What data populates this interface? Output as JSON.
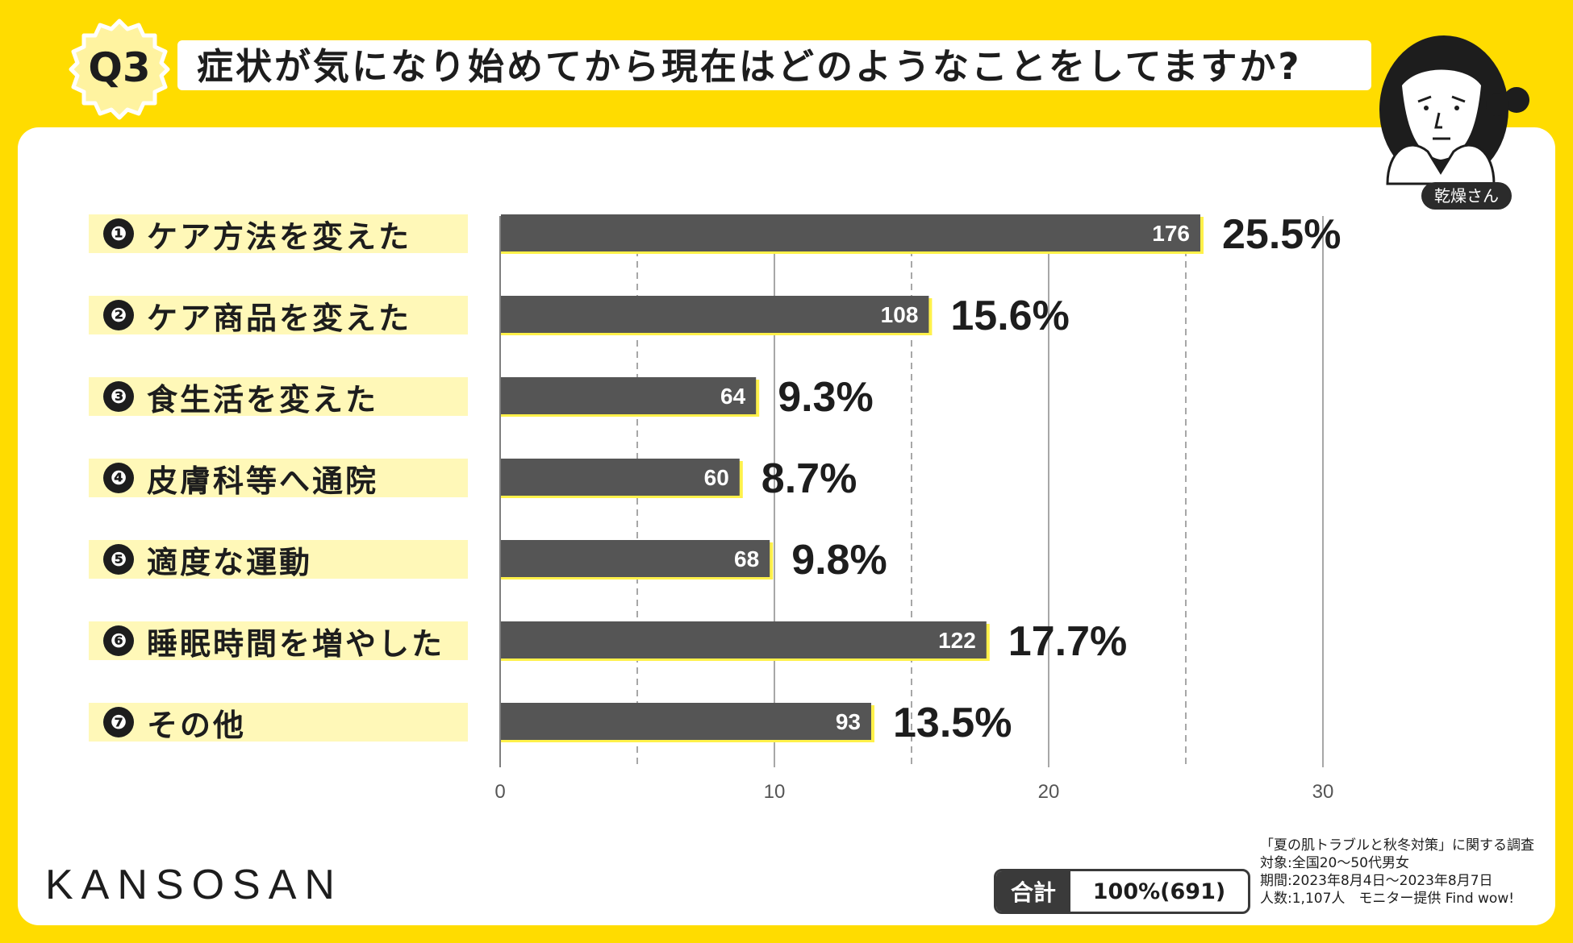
{
  "header": {
    "badge": "Q3",
    "title": "症状が気になり始めてから現在はどのようなことをしてますか?",
    "mascot_tag": "乾燥さん"
  },
  "chart_data": {
    "type": "bar",
    "orientation": "horizontal",
    "categories": [
      "ケア方法を変えた",
      "ケア商品を変えた",
      "食生活を変えた",
      "皮膚科等へ通院",
      "適度な運動",
      "睡眠時間を増やした",
      "その他"
    ],
    "markers": [
      "❶",
      "❷",
      "❸",
      "❹",
      "❺",
      "❻",
      "❼"
    ],
    "series": [
      {
        "values": [
          25.5,
          15.6,
          9.3,
          8.7,
          9.8,
          17.7,
          13.5
        ]
      }
    ],
    "counts": [
      176,
      108,
      64,
      60,
      68,
      122,
      93
    ],
    "percent_labels": [
      "25.5%",
      "15.6%",
      "9.3%",
      "8.7%",
      "9.8%",
      "17.7%",
      "13.5%"
    ],
    "xlim": [
      0,
      30
    ],
    "xticks": [
      0,
      10,
      20,
      30
    ],
    "minor_gridlines": [
      5,
      15,
      25
    ],
    "bar_color": "#555555",
    "highlight_color": "#FFF14A"
  },
  "footer": {
    "brand": "KANSOSAN",
    "total_label": "合計",
    "total_value": "100%(691)",
    "source_lines": [
      "「夏の肌トラブルと秋冬対策」に関する調査",
      "対象:全国20～50代男女",
      "期間:2023年8月4日～2023年8月7日",
      "人数:1,107人　モニター提供 Find wow!"
    ]
  },
  "colors": {
    "background": "#FFDC00",
    "panel": "#FFFFFF",
    "label_bg": "#FFF8B8",
    "text": "#1D1D1D"
  }
}
